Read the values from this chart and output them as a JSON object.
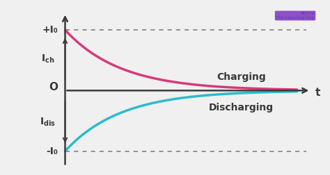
{
  "background_color": "#f0f0f0",
  "plot_bg_color": "#f0f0f0",
  "charging_color": "#d63a7a",
  "discharging_color": "#2abccc",
  "axis_color": "#3a3a3a",
  "dashed_color": "#777777",
  "xlabel": "t",
  "ylim": [
    -1.25,
    1.35
  ],
  "xlim": [
    -0.55,
    5.5
  ],
  "tau": 1.2,
  "charging_label": "Charging",
  "discharging_label": "Discharging",
  "y_pos_label": "+I₀",
  "y_neg_label": "-I₀",
  "origin_label": "O",
  "label_fontsize": 9,
  "curve_linewidth": 2.5,
  "axis_linewidth": 1.8
}
